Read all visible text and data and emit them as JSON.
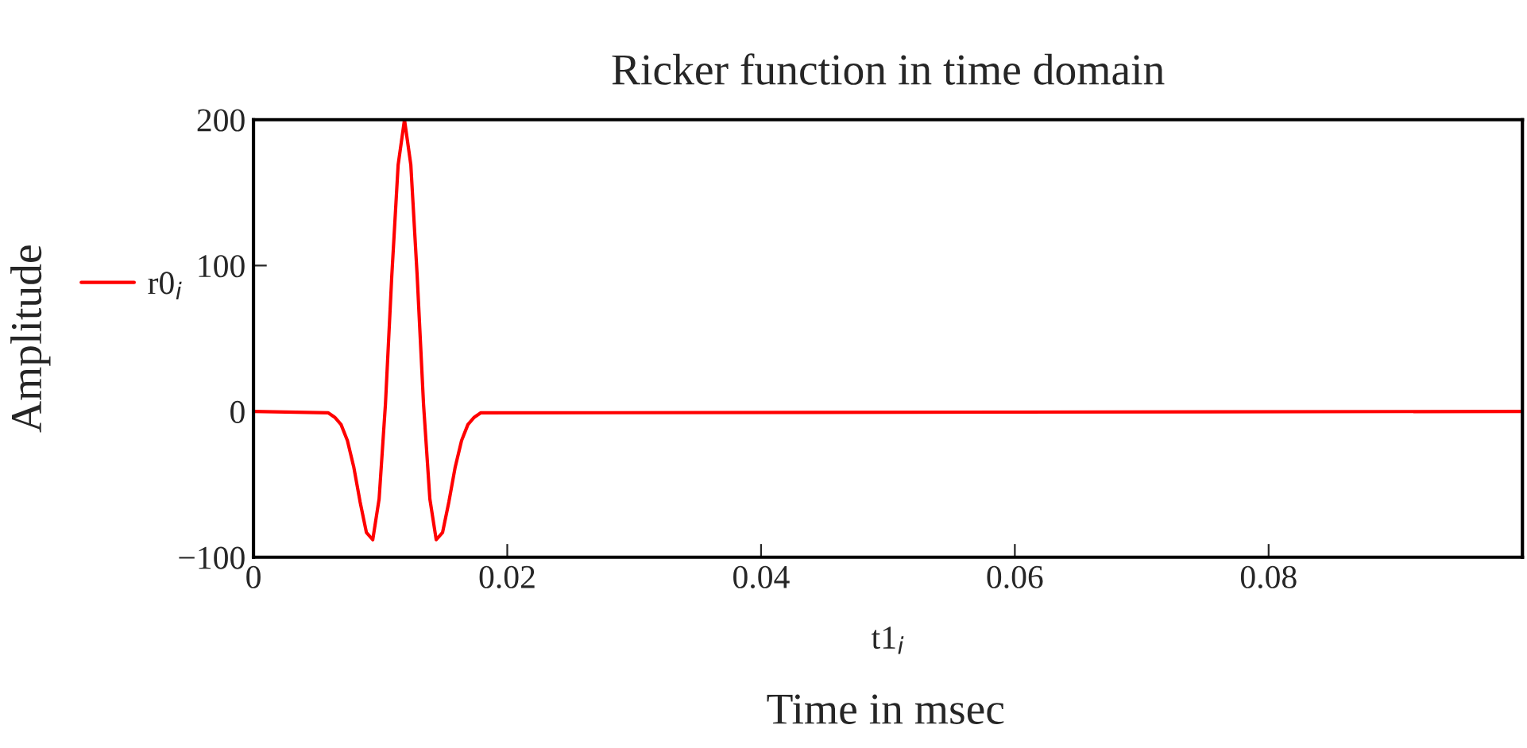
{
  "chart_data": {
    "type": "line",
    "title": "Ricker function in time domain",
    "xlabel": "t1$_{i}$",
    "ylabel": "Amplitude",
    "annotations": [
      "Time in msec"
    ],
    "x": [
      0,
      0.0059,
      0.0064,
      0.0069,
      0.0074,
      0.0079,
      0.0084,
      0.0089,
      0.0094,
      0.0099,
      0.0104,
      0.0109,
      0.0114,
      0.0119,
      0.0124,
      0.0129,
      0.0134,
      0.0139,
      0.0144,
      0.0149,
      0.0154,
      0.0159,
      0.0164,
      0.0169,
      0.0174,
      0.0179,
      0.1
    ],
    "series": [
      {
        "name": "r0$_{i}$",
        "color": "#ff0000",
        "values": [
          0,
          -1,
          -4,
          -9,
          -20,
          -38,
          -62,
          -83,
          -88,
          -60,
          5,
          93,
          169,
          200,
          169,
          93,
          5,
          -60,
          -88,
          -83,
          -62,
          -38,
          -20,
          -9,
          -4,
          -1,
          0
        ]
      }
    ],
    "xlim": [
      0,
      0.1
    ],
    "xticks": [
      0,
      0.02,
      0.04,
      0.06,
      0.08
    ],
    "ylim": [
      -100,
      200
    ],
    "yticks": [
      {
        "value": -100,
        "label": "−100"
      },
      0,
      100,
      200
    ],
    "grid": false,
    "legend": "left",
    "marker": "none",
    "line_style": "solid"
  }
}
